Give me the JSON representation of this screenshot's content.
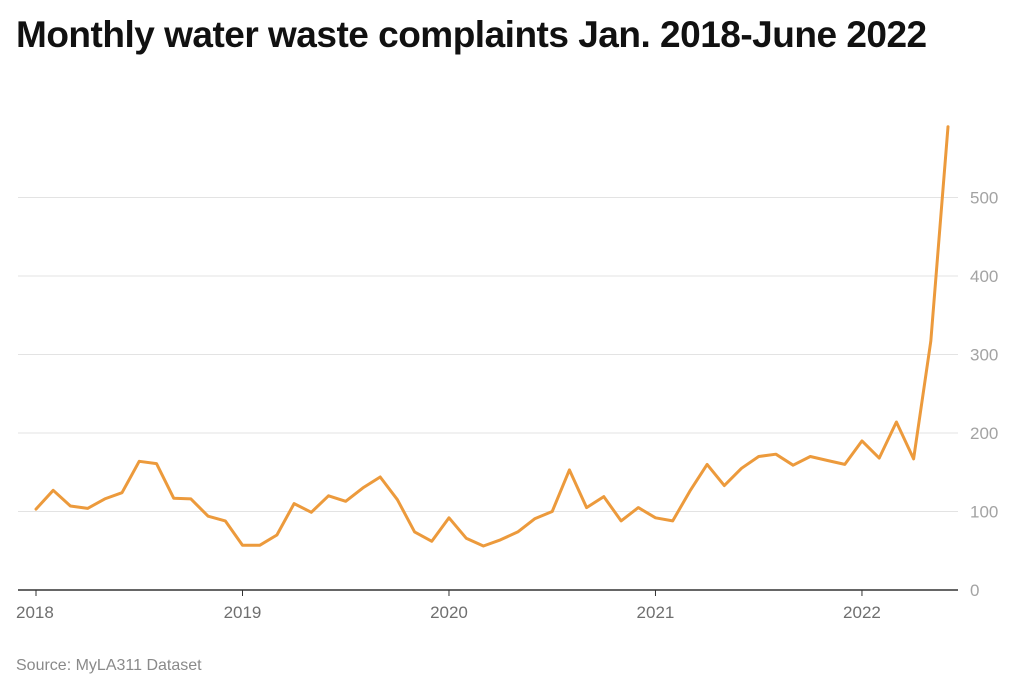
{
  "chart_data": {
    "type": "line",
    "title": "Monthly water waste complaints Jan. 2018-June 2022",
    "source": "Source: MyLA311 Dataset",
    "x_start": "2018-01",
    "x_ticks": [
      "2018",
      "2019",
      "2020",
      "2021",
      "2022"
    ],
    "y_ticks": [
      "0",
      "100",
      "200",
      "300",
      "400",
      "500"
    ],
    "ylim": [
      0,
      600
    ],
    "grid": true,
    "line_color": "#ec9a3c",
    "series": [
      {
        "values": [
          103,
          127,
          107,
          104,
          116,
          124,
          164,
          161,
          117,
          116,
          94,
          88,
          57,
          57,
          70,
          110,
          99,
          120,
          113,
          130,
          144,
          115,
          74,
          62,
          92,
          66,
          56,
          64,
          74,
          91,
          100,
          153,
          105,
          119,
          88,
          105,
          92,
          88,
          126,
          160,
          133,
          155,
          170,
          173,
          159,
          170,
          165,
          160,
          190,
          168,
          214,
          167,
          317,
          590
        ]
      }
    ]
  }
}
